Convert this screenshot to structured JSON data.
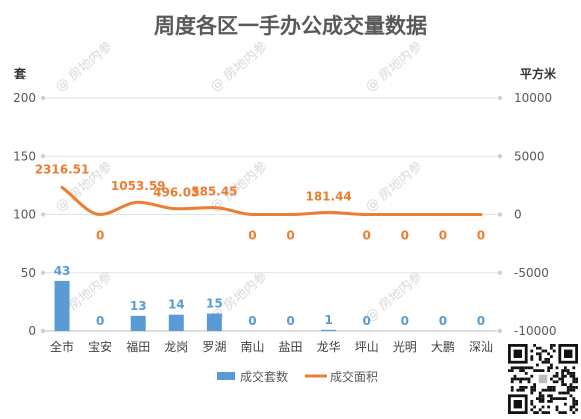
{
  "title": "周度各区一手办公成交量数据",
  "watermark": "房地内参",
  "chart_data": {
    "type": "bar+line",
    "title": "周度各区一手办公成交量数据",
    "categories": [
      "全市",
      "宝安",
      "福田",
      "龙岗",
      "罗湖",
      "南山",
      "盐田",
      "龙华",
      "坪山",
      "光明",
      "大鹏",
      "深汕"
    ],
    "y_left": {
      "unit": "套",
      "ticks": [
        "0",
        "50",
        "100",
        "150",
        "200"
      ],
      "range": [
        0,
        200
      ]
    },
    "y_right": {
      "unit": "平方米",
      "ticks": [
        "-10000",
        "-5000",
        "0",
        "5000",
        "10000"
      ],
      "range": [
        -10000,
        10000
      ]
    },
    "series": [
      {
        "name": "成交套数",
        "type": "bar",
        "axis": "left",
        "color": "#5b9bd5",
        "values": [
          43,
          0,
          13,
          14,
          15,
          0,
          0,
          1,
          0,
          0,
          0,
          0
        ],
        "labels": [
          "43",
          "0",
          "13",
          "14",
          "15",
          "0",
          "0",
          "1",
          "0",
          "0",
          "0",
          "0"
        ]
      },
      {
        "name": "成交面积",
        "type": "line",
        "axis": "right",
        "color": "#ed7d31",
        "values": [
          2316.51,
          0,
          1053.59,
          496.03,
          585.45,
          0,
          0,
          181.44,
          0,
          0,
          0,
          0
        ],
        "labels": [
          "2316.51",
          "0",
          "1053.59",
          "496.03",
          "585.45",
          "0",
          "0",
          "181.44",
          "0",
          "0",
          "0",
          "0"
        ]
      }
    ],
    "grid": true,
    "legend_position": "bottom"
  }
}
